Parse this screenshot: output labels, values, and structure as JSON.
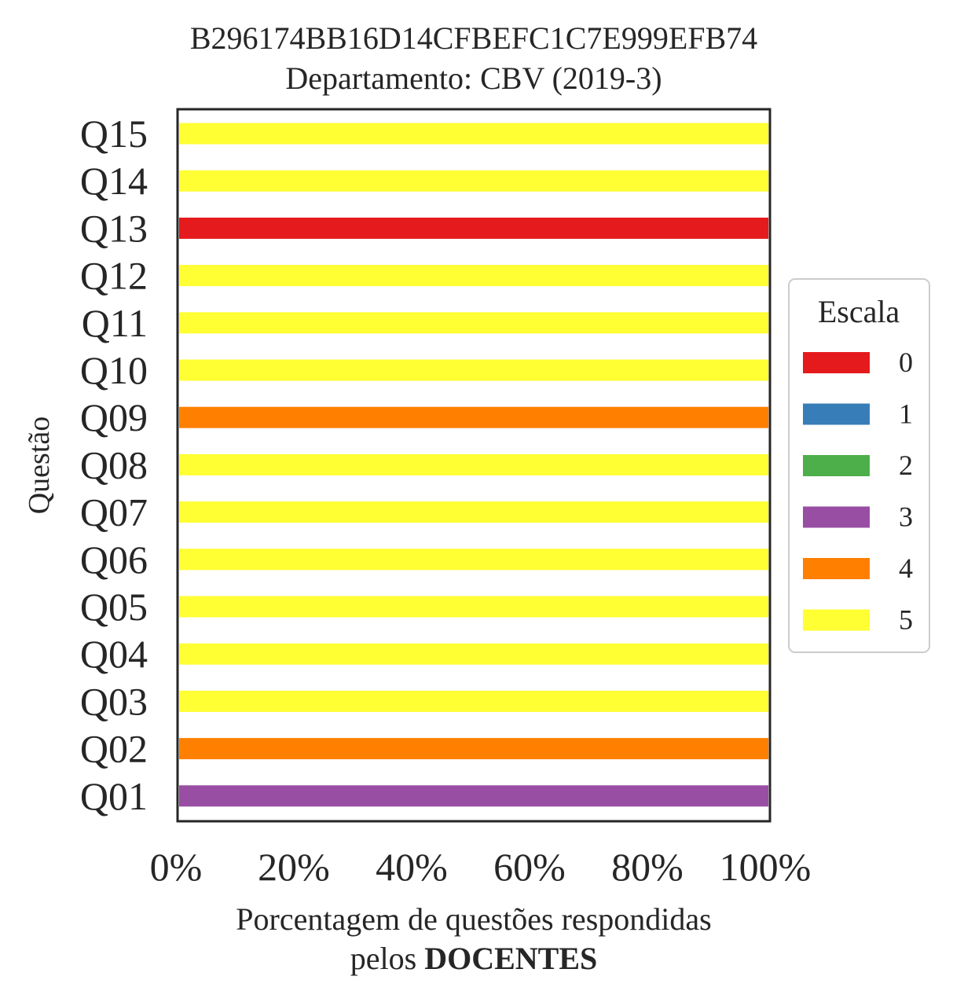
{
  "chart_data": {
    "type": "bar",
    "orientation": "horizontal",
    "stacked": true,
    "title_line1": "B296174BB16D14CFBEFC1C7E999EFB74",
    "title_line2": "Departamento: CBV (2019-3)",
    "xlabel_line1": "Porcentagem de questões respondidas",
    "xlabel_line2_prefix": "pelos",
    "xlabel_line2_bold": "DOCENTES",
    "ylabel": "Questão",
    "xlim": [
      0,
      100
    ],
    "xticks": [
      0,
      20,
      40,
      60,
      80,
      100
    ],
    "xtick_labels": [
      "0%",
      "20%",
      "40%",
      "60%",
      "80%",
      "100%"
    ],
    "categories": [
      "Q01",
      "Q02",
      "Q03",
      "Q04",
      "Q05",
      "Q06",
      "Q07",
      "Q08",
      "Q09",
      "Q10",
      "Q11",
      "Q12",
      "Q13",
      "Q14",
      "Q15"
    ],
    "legend": {
      "title": "Escala",
      "placement": "center-right",
      "entries": [
        {
          "label": "0",
          "color": "#e41a1c"
        },
        {
          "label": "1",
          "color": "#377eb8"
        },
        {
          "label": "2",
          "color": "#4daf4a"
        },
        {
          "label": "3",
          "color": "#984ea3"
        },
        {
          "label": "4",
          "color": "#ff7f00"
        },
        {
          "label": "5",
          "color": "#ffff33"
        }
      ]
    },
    "series": [
      {
        "name": "0",
        "values": [
          0,
          0,
          0,
          0,
          0,
          0,
          0,
          0,
          0,
          0,
          0,
          0,
          100,
          0,
          0
        ]
      },
      {
        "name": "1",
        "values": [
          0,
          0,
          0,
          0,
          0,
          0,
          0,
          0,
          0,
          0,
          0,
          0,
          0,
          0,
          0
        ]
      },
      {
        "name": "2",
        "values": [
          0,
          0,
          0,
          0,
          0,
          0,
          0,
          0,
          0,
          0,
          0,
          0,
          0,
          0,
          0
        ]
      },
      {
        "name": "3",
        "values": [
          100,
          0,
          0,
          0,
          0,
          0,
          0,
          0,
          0,
          0,
          0,
          0,
          0,
          0,
          0
        ]
      },
      {
        "name": "4",
        "values": [
          0,
          100,
          0,
          0,
          0,
          0,
          0,
          0,
          100,
          0,
          0,
          0,
          0,
          0,
          0
        ]
      },
      {
        "name": "5",
        "values": [
          0,
          0,
          100,
          100,
          100,
          100,
          100,
          100,
          0,
          100,
          100,
          100,
          0,
          100,
          100
        ]
      }
    ]
  }
}
